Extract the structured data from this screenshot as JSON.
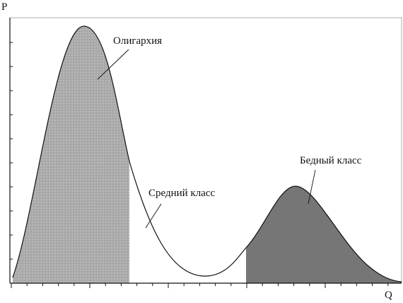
{
  "axes": {
    "y_label": "P",
    "x_label": "Q"
  },
  "annotations": [
    "Олигархия",
    "Средний класс",
    "Бедный класс"
  ]
}
